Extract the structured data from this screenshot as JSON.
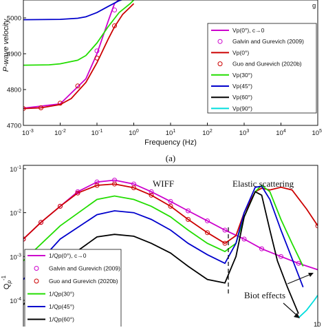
{
  "chart_data": [
    {
      "type": "line",
      "panel": "(a)",
      "xlabel": "Frequency (Hz)",
      "ylabel": "P-wave velocity",
      "xscale": "log",
      "xlim": [
        0.001,
        100000
      ],
      "ylim": [
        4700,
        5050
      ],
      "xticks": [
        {
          "v": 0.001,
          "b": "10",
          "e": "-3"
        },
        {
          "v": 0.01,
          "b": "10",
          "e": "-2"
        },
        {
          "v": 0.1,
          "b": "10",
          "e": "-1"
        },
        {
          "v": 1,
          "b": "10",
          "e": "0"
        },
        {
          "v": 10,
          "b": "10",
          "e": "1"
        },
        {
          "v": 100,
          "b": "10",
          "e": "2"
        },
        {
          "v": 1000,
          "b": "10",
          "e": "3"
        },
        {
          "v": 10000,
          "b": "10",
          "e": "4"
        },
        {
          "v": 100000,
          "b": "10",
          "e": "5"
        }
      ],
      "yticks": [
        {
          "v": 4700,
          "label": "4700"
        },
        {
          "v": 4800,
          "label": "4800"
        },
        {
          "v": 4900,
          "label": "4900"
        },
        {
          "v": 5000,
          "label": "5000"
        }
      ],
      "extra_text": "g",
      "legend": {
        "placement": "right",
        "entries": [
          {
            "label": "Vp(0°), c→0",
            "color": "#cc00cc",
            "kind": "line"
          },
          {
            "label": "Galvin and Gurevich (2009)",
            "color": "#cc00cc",
            "kind": "marker"
          },
          {
            "label": "Vp(0°)",
            "color": "#cc0000",
            "kind": "line"
          },
          {
            "label": "Guo and Gurevich (2020b)",
            "color": "#cc0000",
            "kind": "marker"
          },
          {
            "label": "Vp(30°)",
            "color": "#22dd00",
            "kind": "line"
          },
          {
            "label": "Vp(45°)",
            "color": "#0000cc",
            "kind": "line"
          },
          {
            "label": "Vp(60°)",
            "color": "#000000",
            "kind": "line"
          },
          {
            "label": "Vp(90°)",
            "color": "#00dddd",
            "kind": "line"
          }
        ]
      },
      "series": [
        {
          "name": "Vp(0°), c→0",
          "color": "#cc00cc",
          "x": [
            0.001,
            0.01,
            0.05,
            0.1,
            0.2,
            0.3,
            0.5,
            1
          ],
          "y": [
            4748,
            4760,
            4830,
            4900,
            4990,
            5040,
            5060,
            5070
          ]
        },
        {
          "name": "Vp(0°)",
          "color": "#cc0000",
          "x": [
            0.001,
            0.003,
            0.01,
            0.02,
            0.05,
            0.1,
            0.2,
            0.3,
            0.5,
            0.8,
            1
          ],
          "y": [
            4747,
            4749,
            4758,
            4775,
            4820,
            4875,
            4940,
            4975,
            5010,
            5030,
            5040
          ]
        },
        {
          "name": "Vp(30°)",
          "color": "#22dd00",
          "x": [
            0.001,
            0.005,
            0.01,
            0.03,
            0.05,
            0.1,
            0.2,
            0.4,
            0.8,
            1
          ],
          "y": [
            4868,
            4869,
            4872,
            4882,
            4895,
            4930,
            4975,
            5015,
            5040,
            5050
          ]
        },
        {
          "name": "Vp(45°)",
          "color": "#0000cc",
          "x": [
            0.001,
            0.01,
            0.03,
            0.05,
            0.1,
            0.2,
            0.4,
            0.8
          ],
          "y": [
            4995,
            4996,
            4999,
            5003,
            5015,
            5032,
            5048,
            5058
          ]
        }
      ],
      "markers": [
        {
          "name": "Galvin and Gurevich (2009)",
          "color": "#cc00cc",
          "x": [
            0.1,
            0.3
          ],
          "y": [
            4908,
            5022
          ]
        },
        {
          "name": "Guo and Gurevich (2020b)",
          "color": "#cc0000",
          "x": [
            0.001,
            0.003,
            0.01,
            0.03,
            0.1,
            0.3
          ],
          "y": [
            4747,
            4749,
            4762,
            4810,
            4888,
            4978
          ]
        }
      ]
    },
    {
      "type": "line",
      "ylabel": "Q_p^-1",
      "xscale": "log",
      "yscale": "log",
      "xlim": [
        0.001,
        100000
      ],
      "ylim": [
        3e-05,
        0.1
      ],
      "yticks": [
        {
          "v": 0.1,
          "b": "10",
          "e": "-1"
        },
        {
          "v": 0.01,
          "b": "10",
          "e": "-2"
        },
        {
          "v": 0.001,
          "b": "10",
          "e": "-3"
        },
        {
          "v": 0.0001,
          "b": "10",
          "e": "-4"
        }
      ],
      "annotations": [
        {
          "text": "WIFF",
          "x": 3,
          "y": 0.08
        },
        {
          "text": "Elastic scattering",
          "x": 1200,
          "y": 0.08
        },
        {
          "text": "Biot effects",
          "x": 3000,
          "y": 0.00017
        }
      ],
      "legend": {
        "placement": "lower-left",
        "entries": [
          {
            "label": "1/Qp(0°), c→0",
            "color": "#cc00cc",
            "kind": "line"
          },
          {
            "label": "Galvin and Gurevich (2009)",
            "color": "#cc00cc",
            "kind": "marker"
          },
          {
            "label": "Guo and Gurevich (2020b)",
            "color": "#cc0000",
            "kind": "marker"
          },
          {
            "label": "1/Qp(30°)",
            "color": "#22dd00",
            "kind": "line"
          },
          {
            "label": "1/Qp(45°)",
            "color": "#0000cc",
            "kind": "line"
          },
          {
            "label": "1/Qp(60°)",
            "color": "#000000",
            "kind": "line"
          }
        ]
      },
      "series": [
        {
          "name": "1/Qp(0°), c→0",
          "color": "#cc00cc",
          "x": [
            0.001,
            0.003,
            0.01,
            0.03,
            0.1,
            0.3,
            1,
            3,
            10,
            30,
            100,
            300,
            1000,
            3000,
            10000,
            30000,
            100000
          ],
          "y": [
            0.0025,
            0.006,
            0.014,
            0.03,
            0.05,
            0.055,
            0.045,
            0.03,
            0.018,
            0.011,
            0.0065,
            0.004,
            0.0025,
            0.0015,
            0.001,
            0.0007,
            0.0005
          ]
        },
        {
          "name": "1/Qp(0°)",
          "color": "#cc0000",
          "x": [
            0.001,
            0.003,
            0.01,
            0.03,
            0.1,
            0.3,
            1,
            3,
            10,
            30,
            100,
            300,
            600,
            1000,
            2000,
            3000,
            5000,
            10000,
            20000,
            50000,
            100000
          ],
          "y": [
            0.0025,
            0.006,
            0.014,
            0.028,
            0.042,
            0.045,
            0.037,
            0.025,
            0.014,
            0.007,
            0.0035,
            0.002,
            0.003,
            0.01,
            0.03,
            0.036,
            0.033,
            0.038,
            0.033,
            0.012,
            0.005
          ]
        },
        {
          "name": "1/Qp(30°)",
          "color": "#22dd00",
          "x": [
            0.001,
            0.01,
            0.1,
            0.3,
            1,
            3,
            10,
            30,
            100,
            300,
            600,
            1000,
            2000,
            3000,
            5000,
            10000,
            20000,
            40000
          ],
          "y": [
            0.0008,
            0.005,
            0.02,
            0.024,
            0.02,
            0.014,
            0.008,
            0.004,
            0.002,
            0.0013,
            0.002,
            0.008,
            0.03,
            0.042,
            0.03,
            0.007,
            0.002,
            0.0006
          ]
        },
        {
          "name": "1/Qp(45°)",
          "color": "#0000cc",
          "x": [
            0.001,
            0.01,
            0.1,
            0.3,
            1,
            3,
            10,
            30,
            100,
            300,
            600,
            1000,
            2000,
            3000,
            5000,
            10000,
            20000,
            40000
          ],
          "y": [
            0.0003,
            0.0025,
            0.009,
            0.011,
            0.01,
            0.007,
            0.004,
            0.002,
            0.0011,
            0.0007,
            0.002,
            0.01,
            0.038,
            0.04,
            0.02,
            0.004,
            0.0009,
            0.0002
          ]
        },
        {
          "name": "1/Qp(60°)",
          "color": "#000000",
          "x": [
            0.001,
            0.01,
            0.1,
            0.3,
            1,
            3,
            10,
            30,
            100,
            300,
            600,
            1000,
            2000,
            3000,
            5000,
            8000,
            15000,
            30000
          ],
          "y": [
            8e-05,
            0.0007,
            0.0028,
            0.0032,
            0.0029,
            0.002,
            0.0012,
            0.0006,
            0.0003,
            0.00025,
            0.001,
            0.008,
            0.03,
            0.025,
            0.004,
            0.0008,
            0.0002,
            5e-05
          ]
        },
        {
          "name": "1/Qp(90°)",
          "color": "#00dddd",
          "x": [
            30000,
            50000,
            80000,
            100000
          ],
          "y": [
            4e-05,
            6e-05,
            0.0001,
            0.00013
          ]
        }
      ],
      "markers": [
        {
          "name": "Galvin and Gurevich (2009)",
          "color": "#cc00cc",
          "x": [
            0.001,
            0.003,
            0.01,
            0.03,
            0.1,
            0.3,
            1,
            3,
            10,
            30,
            100,
            300,
            1000,
            3000,
            10000,
            30000
          ],
          "y": [
            0.0025,
            0.006,
            0.014,
            0.03,
            0.05,
            0.055,
            0.045,
            0.03,
            0.018,
            0.011,
            0.0065,
            0.004,
            0.0025,
            0.0015,
            0.001,
            0.0007
          ]
        },
        {
          "name": "Guo and Gurevich (2020b)",
          "color": "#cc0000",
          "x": [
            0.001,
            0.003,
            0.01,
            0.03,
            0.1,
            0.3,
            1,
            3,
            10,
            30,
            100,
            300,
            100000
          ],
          "y": [
            0.0025,
            0.006,
            0.014,
            0.028,
            0.042,
            0.045,
            0.037,
            0.025,
            0.014,
            0.007,
            0.0035,
            0.002,
            0.005
          ]
        }
      ],
      "partial_tick_label": "10"
    }
  ]
}
